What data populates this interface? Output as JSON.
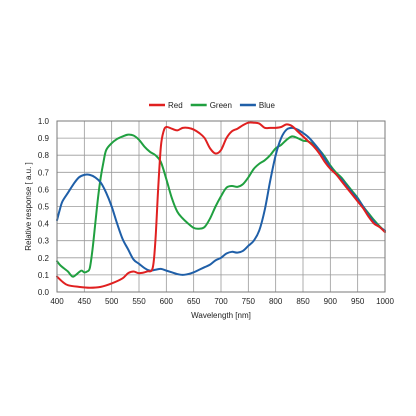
{
  "chart_data": {
    "type": "line",
    "title": "",
    "xlabel": "Wavelength [nm]",
    "ylabel": "Relative response [ a.u. ]",
    "xlim": [
      400,
      1000
    ],
    "ylim": [
      0,
      1.0
    ],
    "x_ticks": [
      400,
      450,
      500,
      550,
      600,
      650,
      700,
      750,
      800,
      850,
      900,
      950,
      1000
    ],
    "y_ticks": [
      0.0,
      0.1,
      0.2,
      0.3,
      0.4,
      0.5,
      0.6,
      0.7,
      0.8,
      0.9,
      1.0
    ],
    "x_tick_labels": [
      "400",
      "450",
      "500",
      "550",
      "600",
      "650",
      "700",
      "750",
      "800",
      "850",
      "900",
      "950",
      "1000"
    ],
    "y_tick_labels": [
      "0.0",
      "0.1",
      "0.2",
      "0.3",
      "0.4",
      "0.5",
      "0.6",
      "0.7",
      "0.8",
      "0.9",
      "1.0"
    ],
    "grid": true,
    "legend_position": "top-center",
    "series": [
      {
        "name": "Red",
        "color": "#e02020",
        "points": [
          [
            400,
            0.09
          ],
          [
            410,
            0.06
          ],
          [
            420,
            0.04
          ],
          [
            440,
            0.03
          ],
          [
            460,
            0.025
          ],
          [
            480,
            0.03
          ],
          [
            500,
            0.05
          ],
          [
            520,
            0.08
          ],
          [
            530,
            0.11
          ],
          [
            540,
            0.12
          ],
          [
            550,
            0.11
          ],
          [
            565,
            0.12
          ],
          [
            575,
            0.14
          ],
          [
            580,
            0.3
          ],
          [
            585,
            0.6
          ],
          [
            590,
            0.85
          ],
          [
            595,
            0.94
          ],
          [
            600,
            0.965
          ],
          [
            610,
            0.955
          ],
          [
            620,
            0.945
          ],
          [
            630,
            0.96
          ],
          [
            640,
            0.96
          ],
          [
            650,
            0.95
          ],
          [
            660,
            0.93
          ],
          [
            670,
            0.9
          ],
          [
            680,
            0.84
          ],
          [
            690,
            0.81
          ],
          [
            700,
            0.83
          ],
          [
            710,
            0.9
          ],
          [
            720,
            0.94
          ],
          [
            730,
            0.955
          ],
          [
            740,
            0.975
          ],
          [
            750,
            0.99
          ],
          [
            760,
            0.99
          ],
          [
            770,
            0.985
          ],
          [
            780,
            0.96
          ],
          [
            790,
            0.96
          ],
          [
            800,
            0.96
          ],
          [
            810,
            0.965
          ],
          [
            820,
            0.98
          ],
          [
            830,
            0.97
          ],
          [
            840,
            0.94
          ],
          [
            850,
            0.91
          ],
          [
            860,
            0.88
          ],
          [
            870,
            0.85
          ],
          [
            880,
            0.81
          ],
          [
            890,
            0.76
          ],
          [
            900,
            0.72
          ],
          [
            910,
            0.69
          ],
          [
            920,
            0.65
          ],
          [
            930,
            0.61
          ],
          [
            940,
            0.57
          ],
          [
            950,
            0.53
          ],
          [
            960,
            0.49
          ],
          [
            970,
            0.44
          ],
          [
            980,
            0.4
          ],
          [
            990,
            0.38
          ],
          [
            1000,
            0.35
          ]
        ]
      },
      {
        "name": "Green",
        "color": "#20a040",
        "points": [
          [
            400,
            0.18
          ],
          [
            405,
            0.16
          ],
          [
            410,
            0.145
          ],
          [
            420,
            0.12
          ],
          [
            425,
            0.1
          ],
          [
            430,
            0.09
          ],
          [
            440,
            0.115
          ],
          [
            445,
            0.125
          ],
          [
            450,
            0.115
          ],
          [
            455,
            0.12
          ],
          [
            460,
            0.14
          ],
          [
            465,
            0.25
          ],
          [
            470,
            0.4
          ],
          [
            475,
            0.55
          ],
          [
            480,
            0.67
          ],
          [
            485,
            0.76
          ],
          [
            490,
            0.83
          ],
          [
            500,
            0.87
          ],
          [
            510,
            0.895
          ],
          [
            520,
            0.91
          ],
          [
            530,
            0.92
          ],
          [
            540,
            0.915
          ],
          [
            550,
            0.89
          ],
          [
            560,
            0.85
          ],
          [
            570,
            0.82
          ],
          [
            580,
            0.8
          ],
          [
            590,
            0.76
          ],
          [
            600,
            0.66
          ],
          [
            610,
            0.55
          ],
          [
            620,
            0.47
          ],
          [
            630,
            0.43
          ],
          [
            640,
            0.4
          ],
          [
            650,
            0.375
          ],
          [
            660,
            0.37
          ],
          [
            670,
            0.38
          ],
          [
            680,
            0.43
          ],
          [
            690,
            0.5
          ],
          [
            700,
            0.56
          ],
          [
            710,
            0.61
          ],
          [
            720,
            0.62
          ],
          [
            730,
            0.615
          ],
          [
            740,
            0.63
          ],
          [
            750,
            0.67
          ],
          [
            760,
            0.72
          ],
          [
            770,
            0.75
          ],
          [
            780,
            0.77
          ],
          [
            790,
            0.8
          ],
          [
            800,
            0.84
          ],
          [
            810,
            0.86
          ],
          [
            820,
            0.89
          ],
          [
            830,
            0.91
          ],
          [
            840,
            0.9
          ],
          [
            850,
            0.885
          ],
          [
            860,
            0.88
          ],
          [
            870,
            0.86
          ],
          [
            880,
            0.83
          ],
          [
            890,
            0.79
          ],
          [
            900,
            0.74
          ],
          [
            910,
            0.7
          ],
          [
            920,
            0.67
          ],
          [
            930,
            0.63
          ],
          [
            940,
            0.59
          ],
          [
            950,
            0.55
          ],
          [
            960,
            0.5
          ],
          [
            970,
            0.46
          ],
          [
            980,
            0.42
          ],
          [
            990,
            0.385
          ],
          [
            1000,
            0.355
          ]
        ]
      },
      {
        "name": "Blue",
        "color": "#1f5fa8",
        "points": [
          [
            400,
            0.42
          ],
          [
            405,
            0.48
          ],
          [
            410,
            0.53
          ],
          [
            420,
            0.58
          ],
          [
            430,
            0.63
          ],
          [
            440,
            0.67
          ],
          [
            450,
            0.685
          ],
          [
            460,
            0.685
          ],
          [
            470,
            0.67
          ],
          [
            480,
            0.64
          ],
          [
            490,
            0.58
          ],
          [
            500,
            0.5
          ],
          [
            510,
            0.4
          ],
          [
            520,
            0.31
          ],
          [
            530,
            0.25
          ],
          [
            540,
            0.19
          ],
          [
            550,
            0.165
          ],
          [
            560,
            0.14
          ],
          [
            570,
            0.125
          ],
          [
            580,
            0.13
          ],
          [
            590,
            0.135
          ],
          [
            600,
            0.125
          ],
          [
            610,
            0.115
          ],
          [
            620,
            0.105
          ],
          [
            630,
            0.1
          ],
          [
            640,
            0.105
          ],
          [
            650,
            0.115
          ],
          [
            660,
            0.13
          ],
          [
            670,
            0.145
          ],
          [
            680,
            0.16
          ],
          [
            690,
            0.185
          ],
          [
            700,
            0.2
          ],
          [
            710,
            0.225
          ],
          [
            720,
            0.235
          ],
          [
            730,
            0.23
          ],
          [
            740,
            0.24
          ],
          [
            750,
            0.27
          ],
          [
            760,
            0.3
          ],
          [
            770,
            0.36
          ],
          [
            780,
            0.48
          ],
          [
            790,
            0.65
          ],
          [
            800,
            0.8
          ],
          [
            810,
            0.9
          ],
          [
            820,
            0.95
          ],
          [
            830,
            0.96
          ],
          [
            840,
            0.95
          ],
          [
            850,
            0.93
          ],
          [
            860,
            0.905
          ],
          [
            870,
            0.87
          ],
          [
            880,
            0.83
          ],
          [
            890,
            0.78
          ],
          [
            900,
            0.73
          ],
          [
            910,
            0.69
          ],
          [
            920,
            0.66
          ],
          [
            930,
            0.62
          ],
          [
            940,
            0.58
          ],
          [
            950,
            0.545
          ],
          [
            960,
            0.5
          ],
          [
            970,
            0.45
          ],
          [
            980,
            0.41
          ],
          [
            990,
            0.38
          ],
          [
            1000,
            0.36
          ]
        ]
      }
    ]
  }
}
